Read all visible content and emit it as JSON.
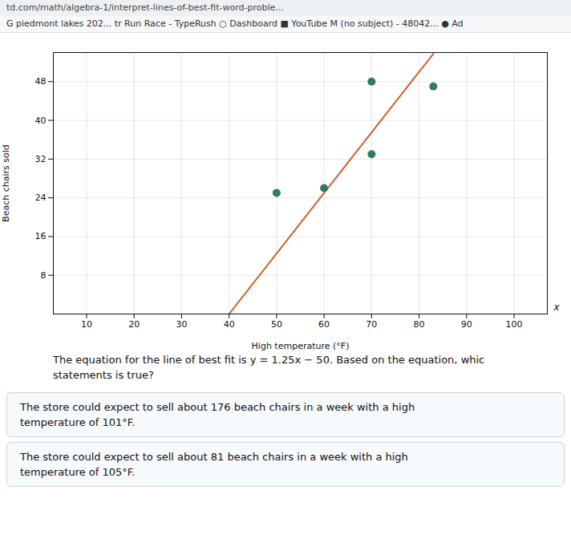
{
  "chart_data": {
    "type": "scatter",
    "x_label": "High temperature (°F)",
    "y_label": "Beach chairs sold",
    "series": [
      {
        "type": "line",
        "color": "#c8622a",
        "x": [
          40,
          83
        ],
        "values": [
          0,
          53.75
        ]
      },
      {
        "type": "scatter",
        "color": "#2e7d5e",
        "x": [
          50,
          60,
          70,
          70,
          83
        ],
        "values": [
          25,
          26,
          33,
          48,
          47
        ]
      }
    ],
    "xlim": [
      3,
      107
    ],
    "xticks": [
      10,
      20,
      30,
      40,
      50,
      60,
      70,
      80,
      90,
      100
    ],
    "ylim": [
      0,
      54
    ],
    "yticks": [
      8,
      16,
      24,
      32,
      40,
      48
    ],
    "grid": true,
    "annotations": [
      "   td.com/math/algebra-1/interpret-lines-of-best-fit-word-proble...",
      "G piedmont lakes 202...    tr Run Race - TypeRush    ○ Dashboard    ■ YouTube    M (no subject) - 48042...    ● Ad",
      "The equation for the line of best fit is y = 1.25x − 50. Based on the equation, whic",
      "statements is true?",
      "The store could expect to sell about 176 beach chairs in a week with a high",
      "temperature of 101°F.",
      "The store could expect to sell about 81 beach chairs in a week with a high",
      "temperature of 105°F.",
      "x"
    ]
  }
}
